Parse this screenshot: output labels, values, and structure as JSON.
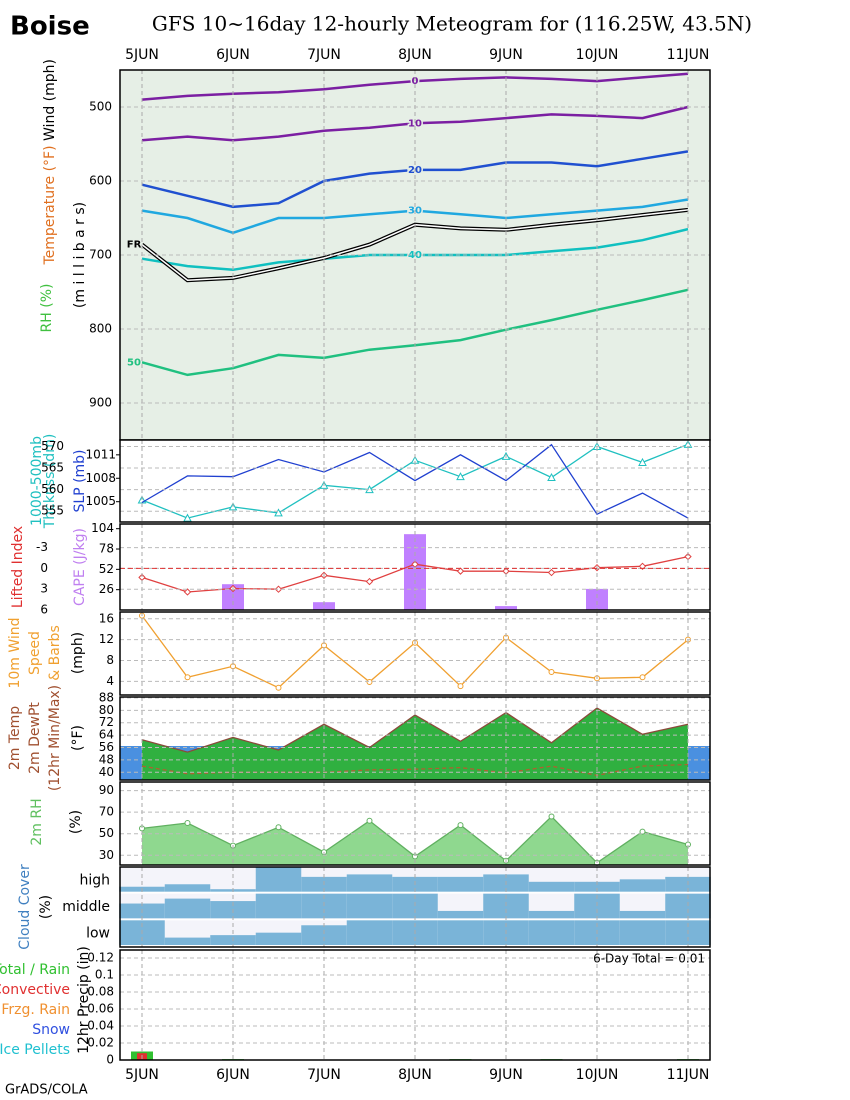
{
  "header": {
    "location": "Boise",
    "title": "GFS 10~16day 12-hourly Meteogram for (116.25W, 43.5N)",
    "credit": "GrADS/COLA"
  },
  "chart_data": [
    {
      "type": "contour",
      "categories": [
        "5JUN",
        null,
        "6JUN",
        null,
        "7JUN",
        null,
        "8JUN",
        null,
        "9JUN",
        null,
        "10JUN",
        null,
        "11JUN"
      ],
      "ylim": [
        950,
        450
      ],
      "yticks": [
        500,
        600,
        700,
        800,
        900
      ],
      "grid": true,
      "background": "#e6efe6",
      "ylabels": [
        {
          "text": "Wind (mph)",
          "color": "#000000"
        },
        {
          "text": "Temperature (°F)",
          "color": "#e07020"
        },
        {
          "text": "RH (%)",
          "color": "#40c040"
        },
        {
          "text": "(m i l l i b a r s)",
          "color": "#000000"
        }
      ],
      "series": [
        {
          "name": "0",
          "type": "line",
          "color": "#7b1fa2",
          "values": [
            490,
            485,
            482,
            480,
            476,
            470,
            465,
            462,
            460,
            462,
            465,
            460,
            455
          ]
        },
        {
          "name": "10",
          "type": "line",
          "color": "#7b1fa2",
          "values": [
            545,
            540,
            545,
            540,
            532,
            528,
            522,
            520,
            515,
            510,
            512,
            515,
            500
          ]
        },
        {
          "name": "20",
          "type": "line",
          "color": "#2050d0",
          "values": [
            605,
            620,
            635,
            630,
            600,
            590,
            585,
            585,
            575,
            575,
            580,
            570,
            560
          ]
        },
        {
          "name": "30",
          "type": "line",
          "color": "#20a8e0",
          "values": [
            640,
            650,
            670,
            650,
            650,
            645,
            640,
            645,
            650,
            645,
            640,
            635,
            625
          ]
        },
        {
          "name": "40",
          "type": "line",
          "color": "#10c0c0",
          "values": [
            705,
            715,
            720,
            710,
            705,
            700,
            700,
            700,
            700,
            695,
            690,
            680,
            665
          ]
        },
        {
          "name": "50",
          "type": "line",
          "color": "#20c080",
          "values": [
            845,
            862,
            853,
            835,
            839,
            828,
            822,
            815,
            801,
            788,
            774,
            761,
            747
          ]
        },
        {
          "name": "FR",
          "type": "double",
          "color": "#000000",
          "values": [
            686,
            734,
            731,
            718,
            704,
            686,
            659,
            664,
            666,
            659,
            653,
            646,
            639
          ]
        }
      ]
    },
    {
      "type": "combo",
      "ylim": [
        552.5,
        571.5
      ],
      "yticks": [
        555,
        560,
        565,
        570
      ],
      "y2lim": [
        1002.4,
        1012.9
      ],
      "y2ticks": [
        1005,
        1008,
        1011
      ],
      "grid": true,
      "ylabels": [
        {
          "text": "1000-500mb",
          "color": "#20c0c0"
        },
        {
          "text": "Thcknss (dm)",
          "color": "#20c0c0"
        },
        {
          "text": "SLP (mb)",
          "color": "#2040d0"
        }
      ],
      "series": [
        {
          "type": "line",
          "color": "#20c0c0",
          "marker": "triangle",
          "values": [
            557.6,
            553.4,
            556,
            554.6,
            561,
            560,
            566.8,
            563,
            567.7,
            562.8,
            570,
            566.3,
            570.5
          ]
        },
        {
          "type": "line",
          "axis": "y2",
          "color": "#2040d0",
          "values": [
            1004.9,
            1008.3,
            1008.2,
            1010.4,
            1008.8,
            1011.3,
            1007.7,
            1011,
            1007.7,
            1012.3,
            1003.4,
            1006.1,
            1002.9
          ]
        }
      ]
    },
    {
      "type": "combo",
      "ylim": [
        6,
        -6.4
      ],
      "yticks": [
        -3,
        0,
        3,
        6
      ],
      "y2lim": [
        0,
        110
      ],
      "y2ticks": [
        26,
        52,
        78,
        104
      ],
      "grid": true,
      "reference_line": 0,
      "ylabels": [
        {
          "text": "Lifted Index",
          "color": "#e03030"
        },
        {
          "text": "CAPE (J/kg)",
          "color": "#c080f0"
        }
      ],
      "series": [
        {
          "type": "bar",
          "axis": "y2",
          "color": "#c080ff",
          "values": [
            0,
            0,
            33,
            0,
            10,
            0,
            97,
            0,
            5,
            0,
            27,
            0,
            0
          ]
        },
        {
          "type": "line",
          "color": "#e04040",
          "marker": "diamond",
          "values": [
            1.3,
            3.4,
            2.9,
            3,
            1,
            1.9,
            -0.6,
            0.4,
            0.4,
            0.6,
            -0.1,
            -0.3,
            -1.7
          ]
        }
      ]
    },
    {
      "type": "combo",
      "ylim": [
        1.4,
        17.3
      ],
      "yticks": [
        4,
        8,
        12,
        16
      ],
      "grid": true,
      "ylabels": [
        {
          "text": "10m Wind",
          "color": "#f0a030"
        },
        {
          "text": "Speed",
          "color": "#f0a030"
        },
        {
          "text": "& Barbs",
          "color": "#f0a030"
        },
        {
          "text": "(mph)",
          "color": "#000000"
        }
      ],
      "series": [
        {
          "type": "line",
          "color": "#f0a030",
          "marker": "circle",
          "values": [
            16.6,
            4.8,
            6.9,
            2.8,
            10.9,
            3.9,
            11.4,
            3.1,
            12.4,
            5.8,
            4.6,
            4.8,
            12
          ]
        }
      ]
    },
    {
      "type": "combo",
      "ylim": [
        35,
        88.6
      ],
      "yticks": [
        40,
        48,
        56,
        64,
        72,
        80,
        88
      ],
      "grid": true,
      "ylabels": [
        {
          "text": "2m Temp",
          "color": "#a05030"
        },
        {
          "text": "2m DewPt",
          "color": "#a05030"
        },
        {
          "text": "(12hr Min/Max)",
          "color": "#a05030"
        },
        {
          "text": "(°F)",
          "color": "#000000"
        }
      ],
      "series": [
        {
          "type": "area",
          "color": "#8b4a3a",
          "fill": "#30b040",
          "values": [
            61,
            53,
            62.5,
            54.4,
            71,
            56,
            77,
            60,
            78.5,
            59,
            81.5,
            64.5,
            71
          ]
        },
        {
          "type": "line",
          "dash": true,
          "color": "#b06030",
          "values": [
            44,
            39,
            40,
            40,
            40,
            41.5,
            42,
            43,
            39.5,
            44,
            38,
            44,
            45
          ]
        }
      ]
    },
    {
      "type": "combo",
      "ylim": [
        21,
        98
      ],
      "yticks": [
        30,
        50,
        70,
        90
      ],
      "grid": true,
      "ylabels": [
        {
          "text": "2m RH",
          "color": "#60c060"
        },
        {
          "text": "(%)",
          "color": "#000000"
        }
      ],
      "series": [
        {
          "type": "area",
          "color": "#60b060",
          "fill": "#8fd88f",
          "marker": "circle",
          "values": [
            55,
            60,
            39,
            56,
            33,
            62,
            29,
            58,
            25,
            66,
            23,
            52,
            40
          ]
        }
      ]
    },
    {
      "type": "cloud",
      "color": "#7ab4d8",
      "ylabels": [
        {
          "text": "Cloud Cover",
          "color": "#4080c0"
        },
        {
          "text": "(%)",
          "color": "#000000"
        }
      ],
      "levels": [
        "high",
        "middle",
        "low"
      ],
      "values": [
        [
          20,
          30,
          10,
          100,
          60,
          70,
          60,
          60,
          70,
          40,
          40,
          50,
          60
        ],
        [
          60,
          80,
          70,
          100,
          100,
          100,
          100,
          30,
          100,
          30,
          100,
          30,
          100
        ],
        [
          100,
          30,
          40,
          50,
          80,
          100,
          100,
          100,
          100,
          100,
          100,
          100,
          100
        ]
      ]
    },
    {
      "type": "precip",
      "ylim": [
        0,
        0.12
      ],
      "yticks": [
        0,
        0.02,
        0.04,
        0.06,
        0.08,
        0.1,
        0.12
      ],
      "grid": true,
      "ylabels": [
        {
          "text": "12hr Precip (in)",
          "color": "#000000"
        }
      ],
      "annotation": "6-Day Total = 0.01",
      "series": [
        {
          "name": "Total / Rain",
          "color": "#30c030",
          "values": [
            0.01,
            0,
            0.001,
            0,
            0,
            0,
            0,
            0.001,
            0,
            0.001,
            0,
            0,
            0.001
          ]
        },
        {
          "name": "Convective",
          "color": "#e03030",
          "values": [
            0.008,
            0,
            0,
            0,
            0,
            0,
            0,
            0,
            0,
            0,
            0,
            0,
            0
          ]
        },
        {
          "name": "Frzg. Rain",
          "color": "#f09030",
          "values": [
            0,
            0,
            0,
            0,
            0,
            0,
            0,
            0,
            0,
            0,
            0,
            0,
            0
          ]
        },
        {
          "name": "Snow",
          "color": "#3050e0",
          "values": [
            0,
            0,
            0,
            0,
            0,
            0,
            0,
            0,
            0,
            0,
            0,
            0,
            0
          ]
        },
        {
          "name": "Ice Pellets",
          "color": "#20c0d0",
          "values": [
            0,
            0,
            0,
            0,
            0,
            0,
            0,
            0,
            0,
            0,
            0,
            0,
            0
          ]
        }
      ]
    }
  ]
}
